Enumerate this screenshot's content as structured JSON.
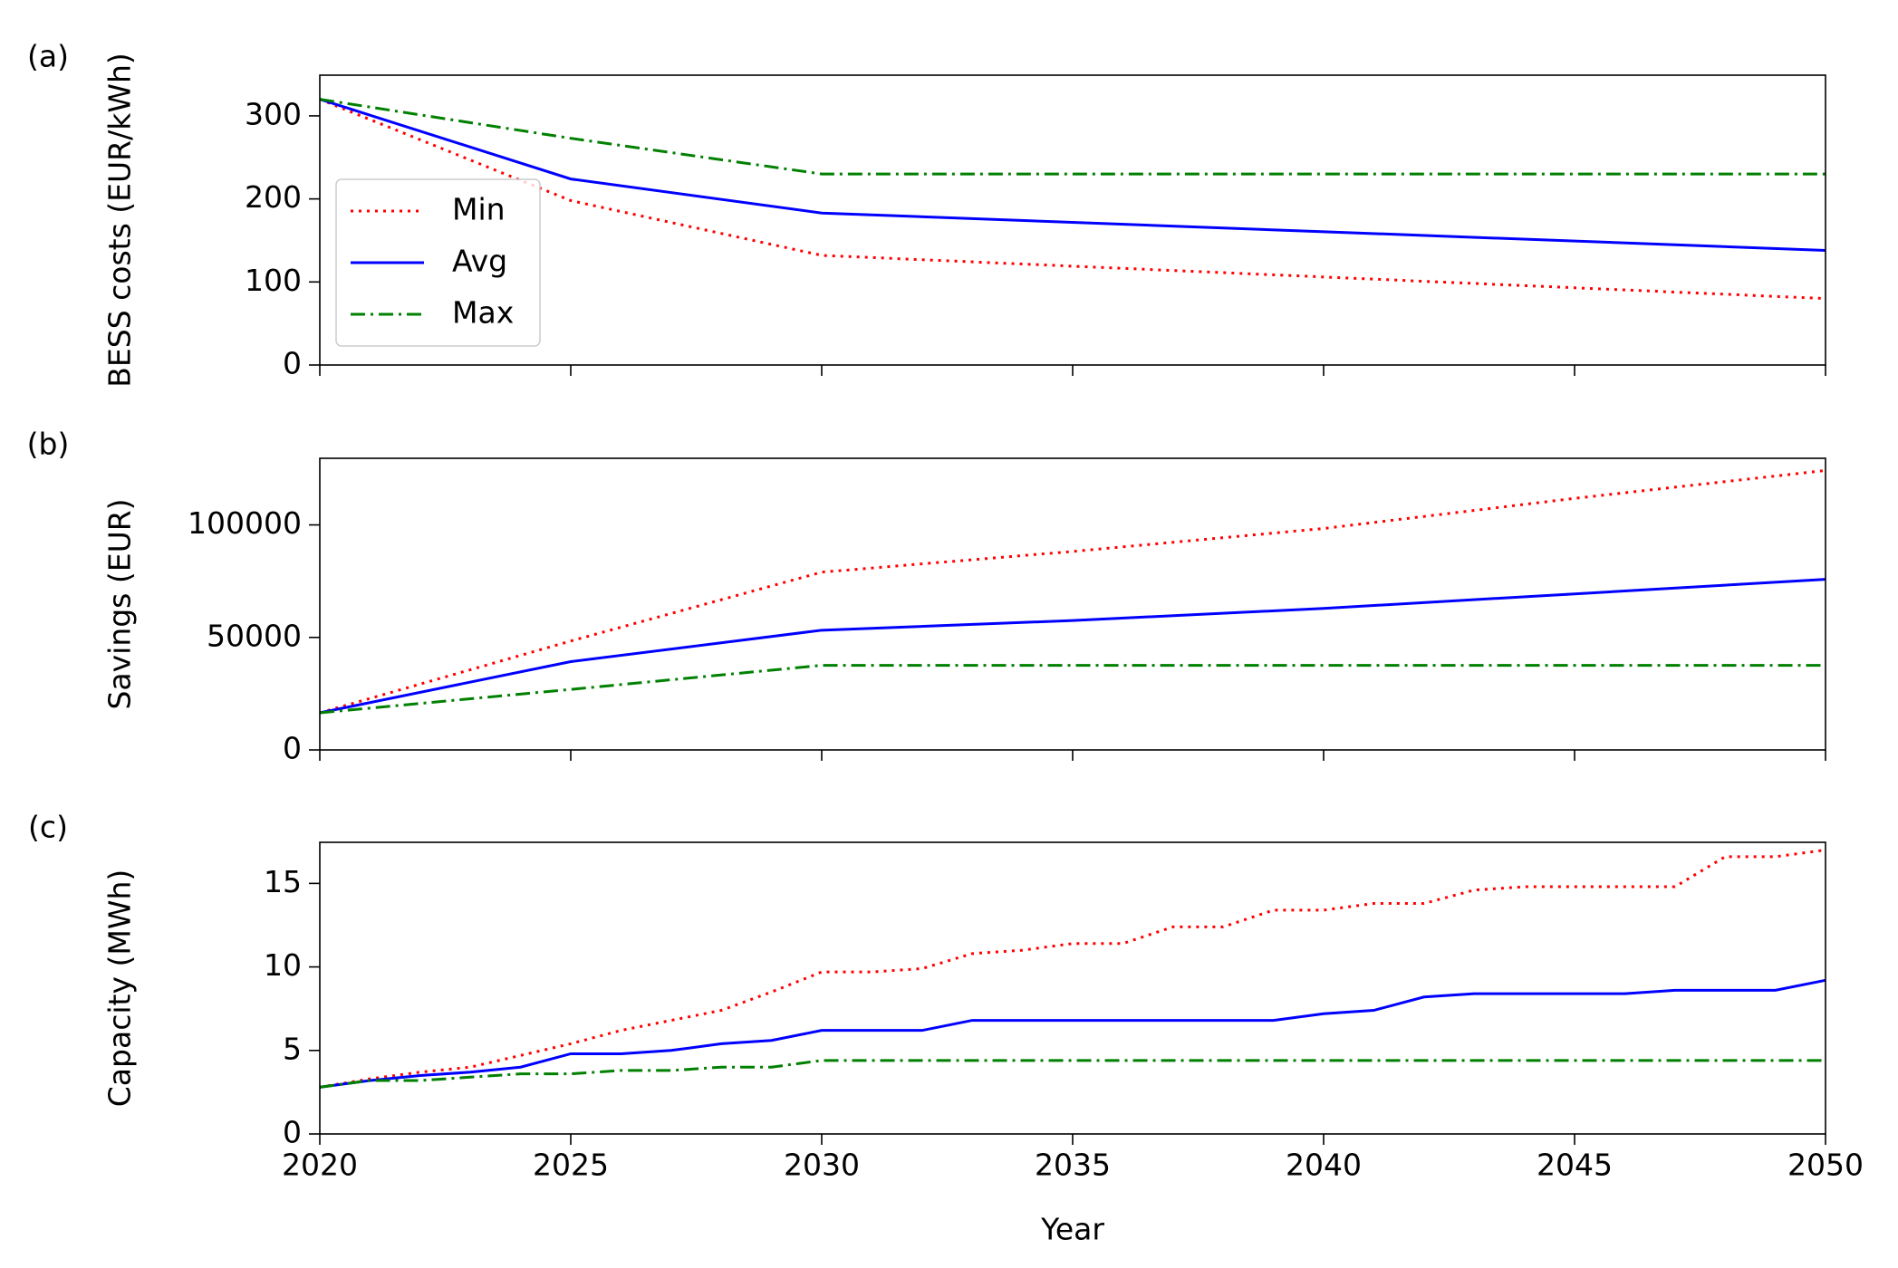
{
  "chart_data": [
    {
      "type": "line",
      "panel_label": "(a)",
      "ylabel": "BESS costs (EUR/kWh)",
      "x": [
        2020,
        2025,
        2030,
        2050
      ],
      "series": [
        {
          "name": "Min",
          "color": "#ff0000",
          "linestyle": "dotted",
          "values": [
            320,
            198,
            132,
            80
          ]
        },
        {
          "name": "Avg",
          "color": "#0000ff",
          "linestyle": "solid",
          "values": [
            320,
            224,
            183,
            138
          ]
        },
        {
          "name": "Max",
          "color": "#008000",
          "linestyle": "dashdot",
          "values": [
            320,
            273,
            230,
            230
          ]
        }
      ],
      "xlim": [
        2020,
        2050
      ],
      "xticks": [
        2020,
        2025,
        2030,
        2035,
        2040,
        2045,
        2050
      ],
      "ylim": [
        0,
        349
      ],
      "yticks": [
        0,
        100,
        200,
        300
      ],
      "legend": "center left"
    },
    {
      "type": "line",
      "panel_label": "(b)",
      "ylabel": "Savings (EUR)",
      "x": [
        2020,
        2025,
        2030,
        2035,
        2040,
        2045,
        2050
      ],
      "series": [
        {
          "color": "#ff0000",
          "linestyle": "dotted",
          "values": [
            16500,
            48400,
            79000,
            88200,
            98400,
            111800,
            124200
          ]
        },
        {
          "color": "#0000ff",
          "linestyle": "solid",
          "values": [
            16500,
            39250,
            53200,
            57500,
            62900,
            69350,
            75800
          ]
        },
        {
          "color": "#008000",
          "linestyle": "dashdot",
          "values": [
            16500,
            26900,
            37600,
            37600,
            37600,
            37600,
            37600
          ]
        }
      ],
      "xlim": [
        2020,
        2050
      ],
      "xticks": [
        2020,
        2025,
        2030,
        2035,
        2040,
        2045,
        2050
      ],
      "ylim": [
        0,
        129600
      ],
      "yticks": [
        0,
        50000,
        100000
      ]
    },
    {
      "type": "line",
      "panel_label": "(c)",
      "ylabel": "Capacity (MWh)",
      "xlabel": "Year",
      "x": [
        2020,
        2021,
        2022,
        2023,
        2024,
        2025,
        2026,
        2027,
        2028,
        2029,
        2030,
        2031,
        2032,
        2033,
        2034,
        2035,
        2036,
        2037,
        2038,
        2039,
        2040,
        2041,
        2042,
        2043,
        2044,
        2045,
        2046,
        2047,
        2048,
        2049,
        2050
      ],
      "series": [
        {
          "color": "#ff0000",
          "linestyle": "dotted",
          "values": [
            2.8,
            3.3,
            3.7,
            4.0,
            4.7,
            5.4,
            6.2,
            6.8,
            7.4,
            8.5,
            9.7,
            9.7,
            9.9,
            10.8,
            11.0,
            11.4,
            11.4,
            12.4,
            12.4,
            13.4,
            13.4,
            13.8,
            13.8,
            14.6,
            14.8,
            14.8,
            14.8,
            14.8,
            16.6,
            16.6,
            17.0
          ]
        },
        {
          "color": "#0000ff",
          "linestyle": "solid",
          "values": [
            2.8,
            3.2,
            3.5,
            3.7,
            4.0,
            4.8,
            4.8,
            5.0,
            5.4,
            5.6,
            6.2,
            6.2,
            6.2,
            6.8,
            6.8,
            6.8,
            6.8,
            6.8,
            6.8,
            6.8,
            7.2,
            7.4,
            8.2,
            8.4,
            8.4,
            8.4,
            8.4,
            8.6,
            8.6,
            8.6,
            9.2
          ]
        },
        {
          "color": "#008000",
          "linestyle": "dashdot",
          "values": [
            2.8,
            3.2,
            3.2,
            3.4,
            3.6,
            3.6,
            3.8,
            3.8,
            4.0,
            4.0,
            4.4,
            4.4,
            4.4,
            4.4,
            4.4,
            4.4,
            4.4,
            4.4,
            4.4,
            4.4,
            4.4,
            4.4,
            4.4,
            4.4,
            4.4,
            4.4,
            4.4,
            4.4,
            4.4,
            4.4,
            4.4
          ]
        }
      ],
      "xlim": [
        2020,
        2050
      ],
      "xticks": [
        2020,
        2025,
        2030,
        2035,
        2040,
        2045,
        2050
      ],
      "ylim": [
        0,
        17.46
      ],
      "yticks": [
        0,
        5,
        10,
        15
      ]
    }
  ]
}
